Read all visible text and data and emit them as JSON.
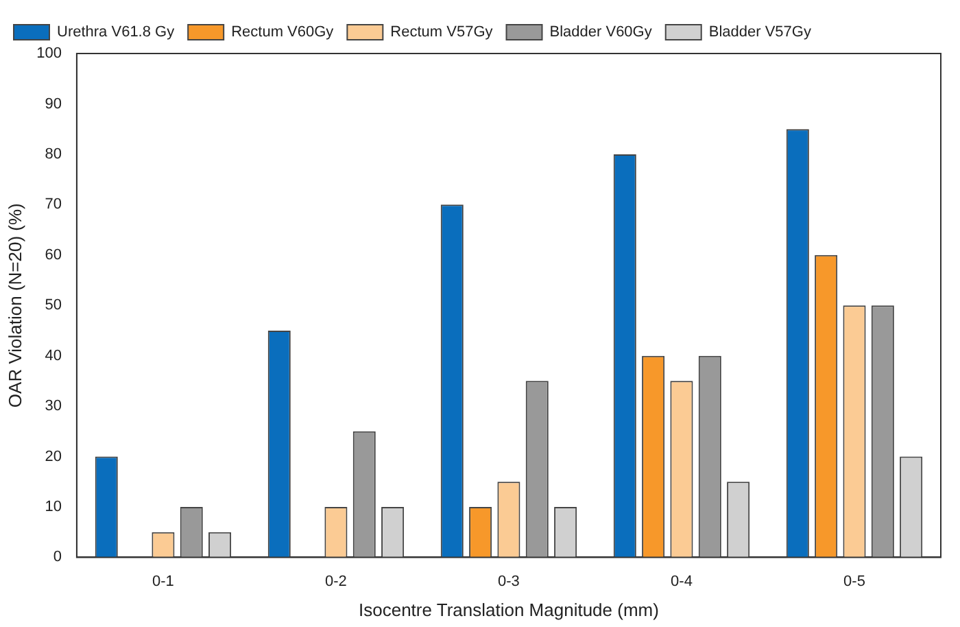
{
  "chart_data": {
    "type": "bar",
    "xlabel": "Isocentre Translation Magnitude (mm)",
    "ylabel": "OAR Violation (N=20) (%)",
    "categories": [
      "0-1",
      "0-2",
      "0-3",
      "0-4",
      "0-5"
    ],
    "series": [
      {
        "name": "Urethra V61.8 Gy",
        "color": "#0a6ebd",
        "values": [
          20,
          45,
          70,
          80,
          85
        ]
      },
      {
        "name": "Rectum V60Gy",
        "color": "#f7982a",
        "values": [
          0,
          0,
          10,
          40,
          60
        ]
      },
      {
        "name": "Rectum V57Gy",
        "color": "#fbcb94",
        "values": [
          5,
          10,
          15,
          35,
          50
        ]
      },
      {
        "name": "Bladder V60Gy",
        "color": "#999999",
        "values": [
          10,
          25,
          35,
          40,
          50
        ]
      },
      {
        "name": "Bladder V57Gy",
        "color": "#d0d0d0",
        "values": [
          5,
          10,
          10,
          15,
          20
        ]
      }
    ],
    "ylim": [
      0,
      100
    ],
    "yticks": [
      0,
      10,
      20,
      30,
      40,
      50,
      60,
      70,
      80,
      90,
      100
    ],
    "grid": false,
    "legend": "top left"
  }
}
